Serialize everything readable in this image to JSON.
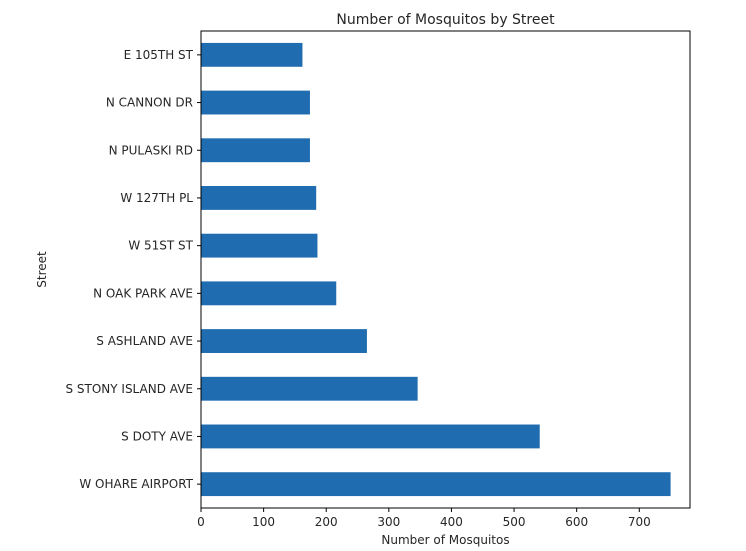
{
  "chart_data": {
    "type": "bar",
    "orientation": "horizontal",
    "title": "Number of Mosquitos by Street",
    "xlabel": "Number of Mosquitos",
    "ylabel": "Street",
    "xlim": [
      0,
      781
    ],
    "xticks": [
      0,
      100,
      200,
      300,
      400,
      500,
      600,
      700
    ],
    "categories": [
      "W OHARE AIRPORT",
      "S DOTY AVE",
      "S STONY ISLAND AVE",
      "S ASHLAND AVE",
      "N OAK PARK AVE",
      "W 51ST ST",
      "W 127TH PL",
      "N PULASKI RD",
      "N CANNON DR",
      "E 105TH ST"
    ],
    "values": [
      750,
      541,
      346,
      265,
      216,
      186,
      184,
      174,
      174,
      162
    ],
    "bar_color": "#1f6cb0",
    "grid": false,
    "legend": "none"
  }
}
